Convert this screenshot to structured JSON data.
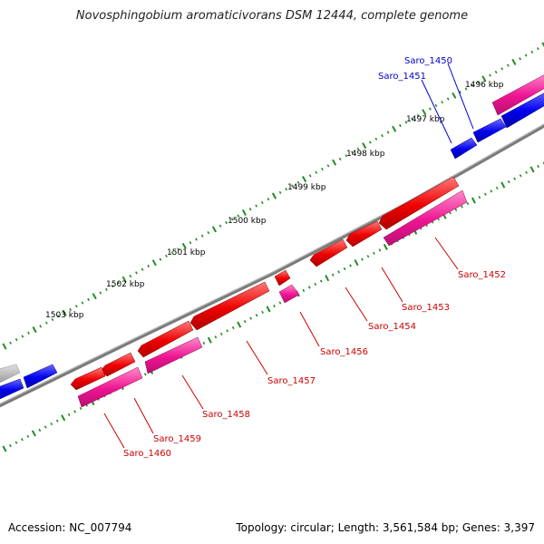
{
  "title": "Novosphingobium aromaticivorans DSM 12444, complete genome",
  "footer": {
    "accession": "Accession: NC_007794",
    "summary": "Topology: circular; Length: 3,561,584 bp; Genes: 3,397"
  },
  "scale_labels": [
    "1496 kbp",
    "1497 kbp",
    "1498 kbp",
    "1499 kbp",
    "1500 kbp",
    "1501 kbp",
    "1502 kbp",
    "1503 kbp"
  ],
  "colors": {
    "backbone": "#808080",
    "tick": "#228B22",
    "forward_cds": "#0000ee",
    "reverse_cds": "#ee0000",
    "reverse_cds_alt": "#ee1493",
    "other": "#b0b0b0",
    "forward_label": "#0000cc",
    "reverse_label": "#cc0000"
  },
  "gene_labels": {
    "forward": [
      "Saro_1450",
      "Saro_1451"
    ],
    "reverse": [
      "Saro_1452",
      "Saro_1453",
      "Saro_1454",
      "Saro_1456",
      "Saro_1457",
      "Saro_1458",
      "Saro_1459",
      "Saro_1460"
    ]
  }
}
